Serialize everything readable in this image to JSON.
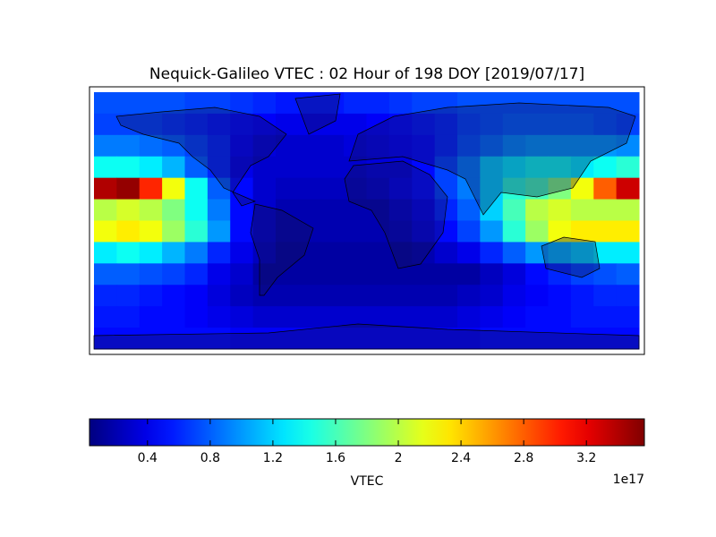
{
  "chart_data": {
    "type": "heatmap",
    "title": "Nequick-Galileo VTEC : 02 Hour of 198 DOY [2019/07/17]",
    "colorbar_label": "VTEC",
    "colorbar_offset_label": "1e17",
    "colormap": "jet",
    "clim": [
      0.03,
      3.57
    ],
    "cticks": [
      0.4,
      0.8,
      1.2,
      1.6,
      2.0,
      2.4,
      2.8,
      3.2
    ],
    "values": [
      [
        0.75,
        0.75,
        0.75,
        0.75,
        0.7,
        0.7,
        0.65,
        0.6,
        0.55,
        0.55,
        0.55,
        0.6,
        0.6,
        0.65,
        0.7,
        0.7,
        0.75,
        0.75,
        0.75,
        0.75,
        0.75,
        0.75,
        0.75,
        0.75
      ],
      [
        0.7,
        0.7,
        0.7,
        0.65,
        0.6,
        0.55,
        0.5,
        0.45,
        0.4,
        0.4,
        0.4,
        0.4,
        0.45,
        0.5,
        0.55,
        0.6,
        0.7,
        0.75,
        0.8,
        0.8,
        0.8,
        0.8,
        0.75,
        0.7
      ],
      [
        0.9,
        0.9,
        0.85,
        0.8,
        0.7,
        0.6,
        0.45,
        0.35,
        0.3,
        0.3,
        0.3,
        0.35,
        0.4,
        0.45,
        0.5,
        0.6,
        0.75,
        0.85,
        0.95,
        1.0,
        1.0,
        1.0,
        1.0,
        0.95
      ],
      [
        1.4,
        1.4,
        1.3,
        1.1,
        0.8,
        0.6,
        0.4,
        0.3,
        0.3,
        0.3,
        0.3,
        0.3,
        0.35,
        0.35,
        0.5,
        0.7,
        0.9,
        1.2,
        1.3,
        1.4,
        1.4,
        1.3,
        1.4,
        1.5
      ],
      [
        3.4,
        3.5,
        3.0,
        2.2,
        1.4,
        0.8,
        0.5,
        0.3,
        0.25,
        0.25,
        0.25,
        0.25,
        0.3,
        0.4,
        0.5,
        0.7,
        0.9,
        1.2,
        1.5,
        1.6,
        1.8,
        2.2,
        2.8,
        3.3
      ],
      [
        2.0,
        2.1,
        2.0,
        1.8,
        1.4,
        0.9,
        0.5,
        0.3,
        0.2,
        0.2,
        0.2,
        0.2,
        0.2,
        0.3,
        0.4,
        0.6,
        0.8,
        1.2,
        1.6,
        2.0,
        2.1,
        2.0,
        2.0,
        2.0
      ],
      [
        2.2,
        2.3,
        2.2,
        1.9,
        1.5,
        1.0,
        0.5,
        0.3,
        0.2,
        0.2,
        0.2,
        0.2,
        0.2,
        0.25,
        0.35,
        0.5,
        0.7,
        1.0,
        1.5,
        1.9,
        2.2,
        2.3,
        2.3,
        2.3
      ],
      [
        1.3,
        1.4,
        1.3,
        1.1,
        0.9,
        0.6,
        0.4,
        0.25,
        0.15,
        0.15,
        0.15,
        0.15,
        0.15,
        0.15,
        0.2,
        0.3,
        0.4,
        0.6,
        0.8,
        1.0,
        1.1,
        1.2,
        1.3,
        1.3
      ],
      [
        0.8,
        0.8,
        0.75,
        0.7,
        0.6,
        0.4,
        0.3,
        0.15,
        0.15,
        0.15,
        0.15,
        0.15,
        0.15,
        0.15,
        0.15,
        0.15,
        0.15,
        0.25,
        0.35,
        0.5,
        0.6,
        0.7,
        0.75,
        0.8
      ],
      [
        0.6,
        0.6,
        0.55,
        0.5,
        0.45,
        0.35,
        0.25,
        0.2,
        0.2,
        0.2,
        0.2,
        0.2,
        0.2,
        0.2,
        0.2,
        0.2,
        0.25,
        0.3,
        0.4,
        0.45,
        0.5,
        0.55,
        0.6,
        0.6
      ],
      [
        0.55,
        0.55,
        0.5,
        0.5,
        0.45,
        0.4,
        0.35,
        0.3,
        0.3,
        0.3,
        0.3,
        0.3,
        0.3,
        0.3,
        0.3,
        0.3,
        0.35,
        0.4,
        0.45,
        0.5,
        0.5,
        0.55,
        0.55,
        0.55
      ],
      [
        0.5,
        0.5,
        0.5,
        0.5,
        0.5,
        0.5,
        0.45,
        0.45,
        0.45,
        0.45,
        0.45,
        0.45,
        0.45,
        0.45,
        0.45,
        0.45,
        0.45,
        0.5,
        0.5,
        0.5,
        0.5,
        0.5,
        0.5,
        0.5
      ]
    ]
  }
}
